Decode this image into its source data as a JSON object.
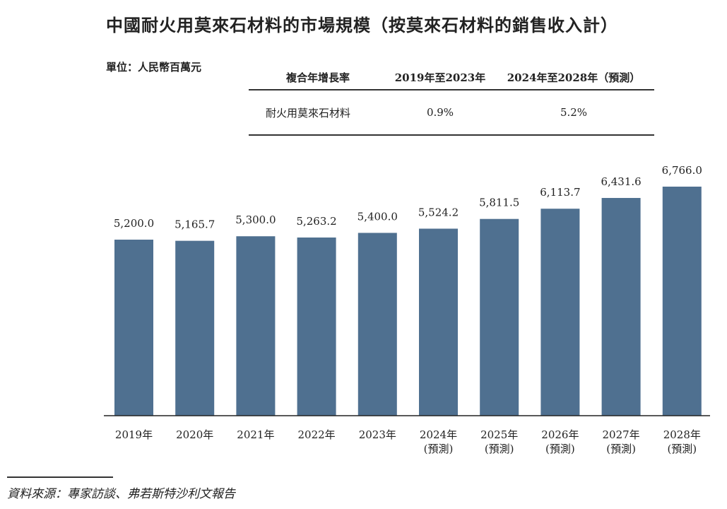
{
  "title": "中國耐火用莫來石材料的市場規模（按莫來石材料的銷售收入計）",
  "unit": "單位：人民幣百萬元",
  "cagr_table": {
    "header": [
      "複合年增長率",
      "2019年至2023年",
      "2024年至2028年（預測）"
    ],
    "row": [
      "耐火用莫來石材料",
      "0.9%",
      "5.2%"
    ]
  },
  "chart_data": {
    "type": "bar",
    "categories": [
      [
        "2019年"
      ],
      [
        "2020年"
      ],
      [
        "2021年"
      ],
      [
        "2022年"
      ],
      [
        "2023年"
      ],
      [
        "2024年",
        "(預測)"
      ],
      [
        "2025年",
        "(預測)"
      ],
      [
        "2026年",
        "(預測)"
      ],
      [
        "2027年",
        "(預測)"
      ],
      [
        "2028年",
        "(預測)"
      ]
    ],
    "values": [
      5200.0,
      5165.7,
      5300.0,
      5263.2,
      5400.0,
      5524.2,
      5811.5,
      6113.7,
      6431.6,
      6766.0
    ],
    "value_labels": [
      "5,200.0",
      "5,165.7",
      "5,300.0",
      "5,263.2",
      "5,400.0",
      "5,524.2",
      "5,811.5",
      "6,113.7",
      "6,431.6",
      "6,766.0"
    ],
    "ylim": [
      0,
      6766.0
    ],
    "grid": false,
    "bar_color": "#4f7090"
  },
  "source": "資料來源：專家訪談、弗若斯特沙利文報告"
}
